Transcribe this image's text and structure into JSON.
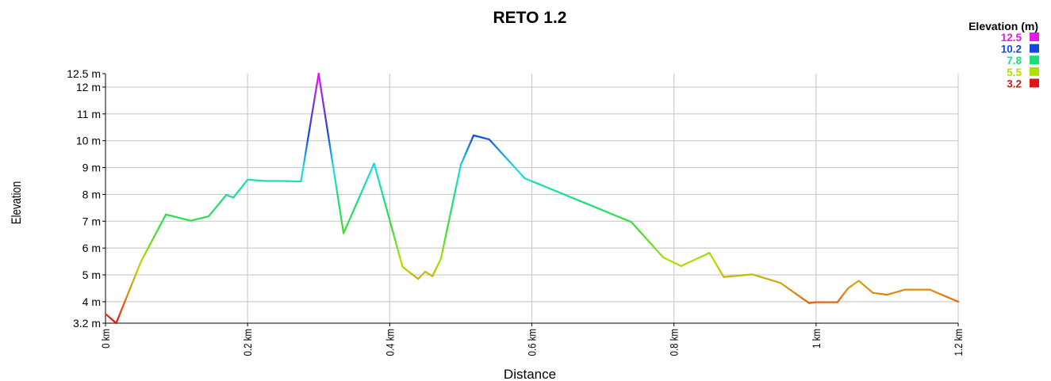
{
  "chart_data": {
    "type": "line",
    "title": "RETO 1.2",
    "xlabel": "Distance",
    "ylabel": "Elevation",
    "xlim": [
      0,
      1.2
    ],
    "ylim": [
      3.2,
      12.5
    ],
    "grid": true,
    "legend_position": "top-right",
    "x_ticks": [
      {
        "value": 0,
        "label": "0 km"
      },
      {
        "value": 0.2,
        "label": "0.2 km"
      },
      {
        "value": 0.4,
        "label": "0.4 km"
      },
      {
        "value": 0.6,
        "label": "0.6 km"
      },
      {
        "value": 0.8,
        "label": "0.8 km"
      },
      {
        "value": 1.0,
        "label": "1 km"
      },
      {
        "value": 1.2,
        "label": "1.2 km"
      }
    ],
    "y_ticks": [
      {
        "value": 3.2,
        "label": "3.2 m"
      },
      {
        "value": 4,
        "label": "4 m"
      },
      {
        "value": 5,
        "label": "5 m"
      },
      {
        "value": 6,
        "label": "6 m"
      },
      {
        "value": 7,
        "label": "7 m"
      },
      {
        "value": 8,
        "label": "8 m"
      },
      {
        "value": 9,
        "label": "9 m"
      },
      {
        "value": 10,
        "label": "10 m"
      },
      {
        "value": 11,
        "label": "11 m"
      },
      {
        "value": 12,
        "label": "12 m"
      },
      {
        "value": 12.5,
        "label": "12.5 m"
      }
    ],
    "legend": {
      "title": "Elevation (m)",
      "entries": [
        {
          "label": "12.5",
          "color": "#e619e6"
        },
        {
          "label": "10.2",
          "color": "#1447e0"
        },
        {
          "label": "7.8",
          "color": "#19e07a"
        },
        {
          "label": "5.5",
          "color": "#b0e000"
        },
        {
          "label": "3.2",
          "color": "#e01414"
        }
      ]
    },
    "color_scale": [
      {
        "value": 3.2,
        "color": "#e01414"
      },
      {
        "value": 4.35,
        "color": "#e08a14"
      },
      {
        "value": 5.5,
        "color": "#b0e000"
      },
      {
        "value": 6.65,
        "color": "#40dd30"
      },
      {
        "value": 7.8,
        "color": "#19e07a"
      },
      {
        "value": 9.0,
        "color": "#19e0e0"
      },
      {
        "value": 10.2,
        "color": "#1447e0"
      },
      {
        "value": 12.5,
        "color": "#e619e6"
      }
    ],
    "x": [
      0,
      0.015,
      0.05,
      0.085,
      0.12,
      0.145,
      0.17,
      0.18,
      0.2,
      0.225,
      0.25,
      0.275,
      0.3,
      0.335,
      0.378,
      0.418,
      0.44,
      0.45,
      0.46,
      0.472,
      0.5,
      0.518,
      0.54,
      0.59,
      0.74,
      0.785,
      0.81,
      0.85,
      0.87,
      0.91,
      0.95,
      0.99,
      1.0,
      1.03,
      1.045,
      1.06,
      1.08,
      1.1,
      1.125,
      1.16,
      1.2
    ],
    "y": [
      3.55,
      3.2,
      5.5,
      7.25,
      7.02,
      7.18,
      7.98,
      7.88,
      8.55,
      8.5,
      8.5,
      8.48,
      12.5,
      6.55,
      9.15,
      5.3,
      4.85,
      5.12,
      4.95,
      5.6,
      9.1,
      10.2,
      10.05,
      8.6,
      6.97,
      5.65,
      5.33,
      5.82,
      4.92,
      5.02,
      4.7,
      3.95,
      3.98,
      3.98,
      4.5,
      4.78,
      4.33,
      4.26,
      4.45,
      4.45,
      4.0
    ]
  }
}
